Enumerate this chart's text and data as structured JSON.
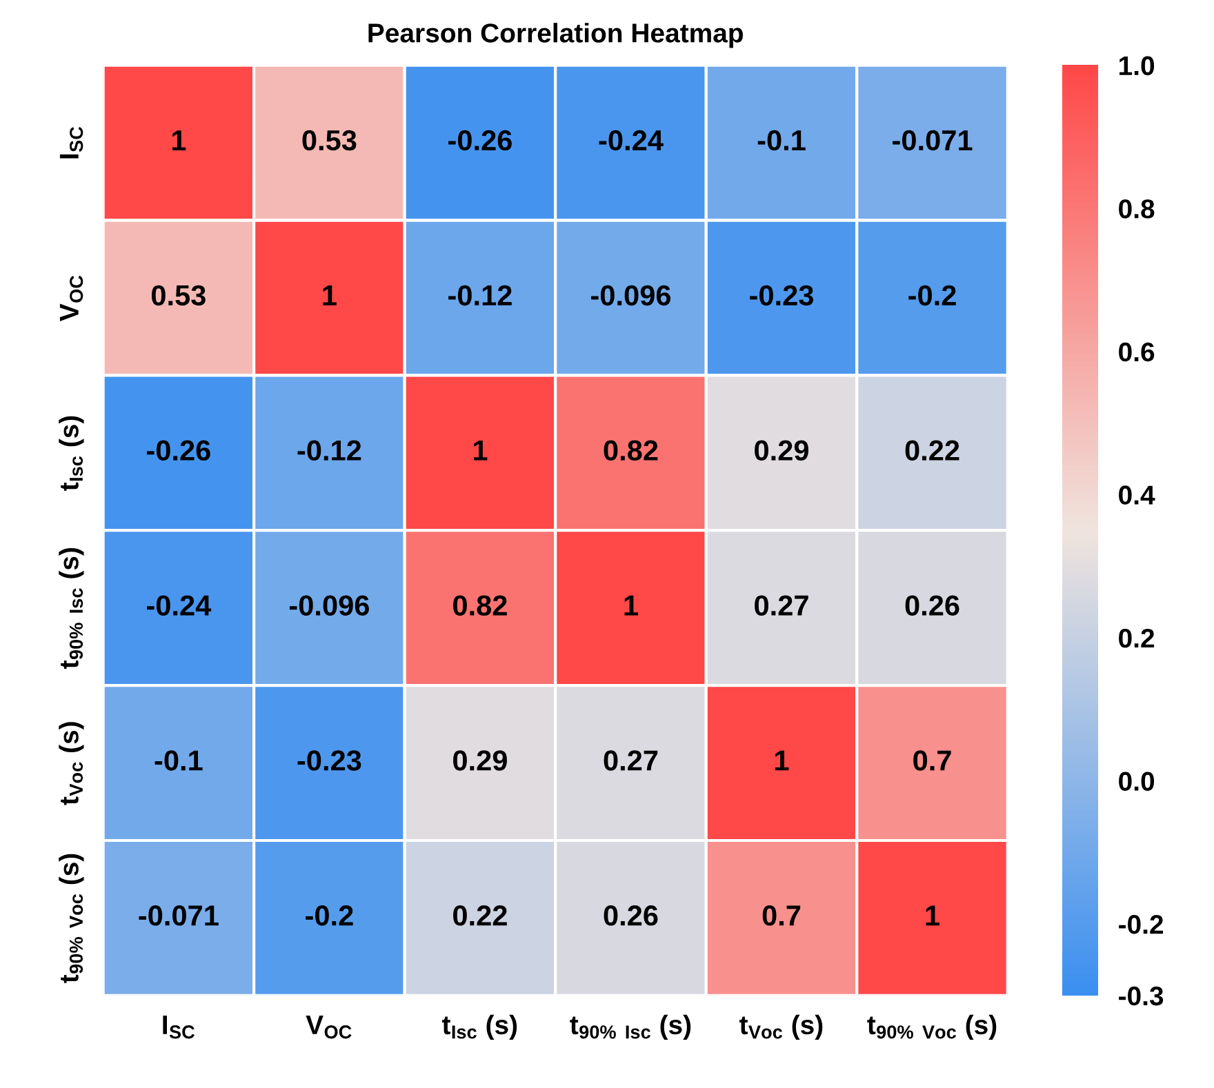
{
  "chart_data": {
    "type": "heatmap",
    "title": "Pearson Correlation Heatmap",
    "categories": [
      "I$_{SC}$",
      "V$_{OC}$",
      "t$_{Isc}$ (s)",
      "t$_{90% Isc}$ (s)",
      "t$_{Voc}$ (s)",
      "t$_{90% Voc}$ (s)"
    ],
    "y_categories": [
      "I$_{SC}$",
      "V$_{OC}$",
      "t$_{Isc}$ (s)",
      "t$_{90% Isc}$ (s)",
      "t$_{Voc}$ (s)",
      "t$_{90% Voc}$ (s)"
    ],
    "cells": [
      [
        1,
        0.53,
        -0.26,
        -0.24,
        -0.1,
        -0.071
      ],
      [
        0.53,
        1,
        -0.12,
        -0.096,
        -0.23,
        -0.2
      ],
      [
        -0.26,
        -0.12,
        1,
        0.82,
        0.29,
        0.22
      ],
      [
        -0.24,
        -0.096,
        0.82,
        1,
        0.27,
        0.26
      ],
      [
        -0.1,
        -0.23,
        0.29,
        0.27,
        1,
        0.7
      ],
      [
        -0.071,
        -0.2,
        0.22,
        0.26,
        0.7,
        1
      ]
    ],
    "data_labels": true,
    "clim": [
      -0.3,
      1.0
    ],
    "cticks": [
      -0.3,
      -0.2,
      {
        "value": 0,
        "label": "0.0"
      },
      0.2,
      0.4,
      0.6,
      0.8,
      {
        "value": 1,
        "label": "1.0"
      }
    ]
  }
}
